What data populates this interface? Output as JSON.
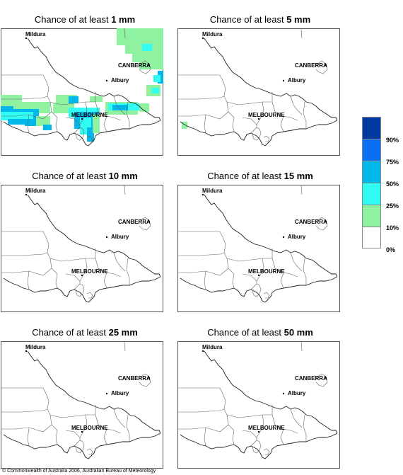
{
  "panels": [
    {
      "prefix": "Chance of at least ",
      "amount": "1 mm",
      "shaded": true
    },
    {
      "prefix": "Chance of at least ",
      "amount": "5 mm",
      "shaded": "small"
    },
    {
      "prefix": "Chance of at least ",
      "amount": "10 mm",
      "shaded": false
    },
    {
      "prefix": "Chance of at least ",
      "amount": "15 mm",
      "shaded": false
    },
    {
      "prefix": "Chance of at least ",
      "amount": "25 mm",
      "shaded": false
    },
    {
      "prefix": "Chance of at least ",
      "amount": "50 mm",
      "shaded": false
    }
  ],
  "cities": {
    "mildura": "Mildura",
    "canberra": "CANBERRA",
    "albury": "Albury",
    "melbourne": "MELBOURNE"
  },
  "legend": {
    "colors": [
      "#003a9e",
      "#0a6ff0",
      "#00b8ea",
      "#30fcf4",
      "#8ef2a0",
      "#ffffff"
    ],
    "labels": [
      "90%",
      "75%",
      "50%",
      "25%",
      "10%",
      "0%"
    ]
  },
  "copyright": "© Commonwealth of Australia 2006, Australian Bureau of Meteorology"
}
